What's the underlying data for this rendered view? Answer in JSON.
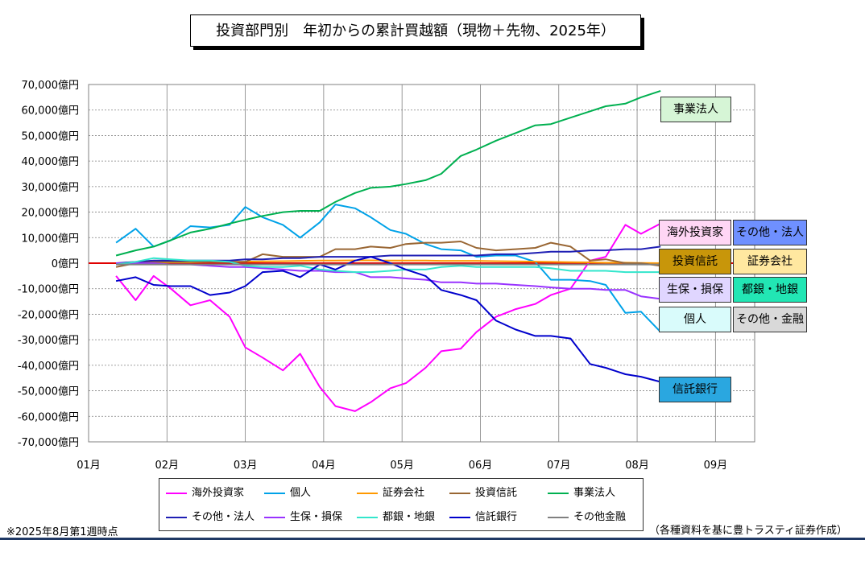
{
  "title": "投資部門別　年初からの累計買越額（現物＋先物、2025年）",
  "note_left": "※2025年8月第1週時点",
  "note_right": "（各種資料を基に豊トラスティ証券作成）",
  "colors": {
    "axis_zero": "#e00000",
    "grid": "#808080",
    "footer": "#1f3864"
  },
  "chart_data": {
    "type": "line",
    "title": "投資部門別　年初からの累計買越額（現物＋先物、2025年）",
    "ylim": [
      -70000,
      70000
    ],
    "y_ticks": [
      70000,
      60000,
      50000,
      40000,
      30000,
      20000,
      10000,
      0,
      -10000,
      -20000,
      -30000,
      -40000,
      -50000,
      -60000,
      -70000
    ],
    "y_tick_labels": [
      "70,000億円",
      "60,000億円",
      "50,000億円",
      "40,000億円",
      "30,000億円",
      "20,000億円",
      "10,000億円",
      "0億円",
      "-10,000億円",
      "-20,000億円",
      "-30,000億円",
      "-40,000億円",
      "-50,000億円",
      "-60,000億円",
      "-70,000億円"
    ],
    "x_tick_labels": [
      "01月",
      "02月",
      "03月",
      "04月",
      "05月",
      "06月",
      "07月",
      "08月",
      "09月"
    ],
    "xlim": [
      1,
      9.5
    ],
    "weeks": [
      1.35,
      1.6,
      1.83,
      2.05,
      2.3,
      2.55,
      2.8,
      3.0,
      3.22,
      3.48,
      3.7,
      3.95,
      4.15,
      4.4,
      4.6,
      4.85,
      5.05,
      5.3,
      5.5,
      5.75,
      5.95,
      6.2,
      6.45,
      6.7,
      6.9,
      7.15,
      7.4,
      7.6,
      7.85,
      8.05,
      8.3
    ],
    "series": [
      {
        "name": "海外投資家",
        "color": "#ff00ff",
        "values": [
          -5000,
          -14500,
          -5000,
          -10000,
          -16500,
          -14500,
          -21000,
          -33000,
          -37000,
          -42000,
          -35500,
          -48500,
          -56000,
          -58000,
          -54500,
          -49000,
          -47000,
          -41000,
          -34500,
          -33500,
          -27000,
          -21000,
          -18000,
          -16000,
          -12500,
          -10000,
          1000,
          2500,
          15000,
          11500,
          15500
        ]
      },
      {
        "name": "個人",
        "color": "#00a2e8",
        "values": [
          8000,
          13500,
          6500,
          9000,
          14500,
          14000,
          15000,
          22000,
          18000,
          15000,
          10000,
          16000,
          23000,
          21500,
          18000,
          13000,
          11500,
          7500,
          5500,
          5000,
          2500,
          3000,
          3000,
          500,
          -6500,
          -6500,
          -7000,
          -8500,
          -19500,
          -19000,
          -27000
        ]
      },
      {
        "name": "証券会社",
        "color": "#ff9900",
        "values": [
          0,
          0,
          200,
          300,
          300,
          500,
          500,
          600,
          700,
          800,
          900,
          1000,
          1000,
          1100,
          1100,
          1000,
          1000,
          1000,
          900,
          900,
          900,
          800,
          700,
          600,
          500,
          400,
          300,
          200,
          200,
          100,
          0
        ]
      },
      {
        "name": "投資信託",
        "color": "#996633",
        "values": [
          -1500,
          0,
          500,
          500,
          500,
          500,
          500,
          500,
          3500,
          2500,
          2500,
          2500,
          5500,
          5500,
          6500,
          6000,
          7500,
          8000,
          8000,
          8500,
          6000,
          5000,
          5500,
          6000,
          8000,
          6500,
          1000,
          1500,
          0,
          0,
          -1000
        ]
      },
      {
        "name": "事業法人",
        "color": "#00b050",
        "values": [
          3000,
          5000,
          6500,
          9000,
          12000,
          13500,
          15500,
          17000,
          18500,
          20000,
          20500,
          20500,
          24000,
          27500,
          29500,
          30000,
          31000,
          32500,
          35000,
          42000,
          44500,
          48000,
          51000,
          54000,
          54500,
          57000,
          59500,
          61500,
          62500,
          65000,
          67500
        ]
      },
      {
        "name": "その他・法人",
        "color": "#1f1fb4",
        "values": [
          0,
          500,
          1000,
          1000,
          1000,
          1000,
          1000,
          1500,
          1500,
          2000,
          2000,
          2500,
          2500,
          2500,
          2500,
          3000,
          3000,
          3000,
          3000,
          3000,
          3000,
          3500,
          3500,
          4000,
          4500,
          4500,
          5000,
          5000,
          5500,
          5500,
          6500
        ]
      },
      {
        "name": "生保・損保",
        "color": "#9933ff",
        "values": [
          0,
          0,
          0,
          -500,
          -500,
          -1000,
          -1500,
          -1500,
          -2000,
          -2500,
          -3000,
          -3000,
          -3500,
          -3500,
          -5500,
          -5500,
          -6000,
          -6500,
          -7500,
          -7500,
          -8000,
          -8000,
          -8500,
          -9000,
          -9500,
          -10000,
          -10000,
          -10500,
          -10500,
          -13000,
          -14000
        ]
      },
      {
        "name": "都銀・地銀",
        "color": "#33e6cc",
        "values": [
          -500,
          500,
          2000,
          1500,
          1000,
          1000,
          500,
          -1000,
          -1500,
          -1500,
          -1000,
          -2500,
          -3000,
          -3500,
          -3500,
          -3000,
          -2500,
          -2500,
          -1500,
          -1000,
          -1500,
          -1500,
          -1500,
          -1500,
          -2000,
          -3000,
          -3000,
          -3000,
          -3500,
          -3500,
          -3500
        ]
      },
      {
        "name": "信託銀行",
        "color": "#0000cc",
        "values": [
          -7000,
          -5500,
          -8500,
          -9000,
          -9000,
          -12500,
          -11500,
          -9000,
          -3500,
          -3000,
          -5500,
          -500,
          -2500,
          1000,
          2500,
          0,
          -2500,
          -5000,
          -10500,
          -12500,
          -14500,
          -22500,
          -26000,
          -28500,
          -28500,
          -29500,
          -39500,
          -41000,
          -43500,
          -44500,
          -46500
        ]
      },
      {
        "name": "その他金融",
        "color": "#808080",
        "values": [
          -500,
          -500,
          -500,
          -500,
          -500,
          -500,
          -500,
          -500,
          -500,
          -500,
          -500,
          -500,
          -500,
          -500,
          -500,
          -500,
          -500,
          -500,
          -500,
          -500,
          -500,
          -500,
          -500,
          -500,
          -500,
          -500,
          -500,
          -500,
          -500,
          -500,
          -500
        ]
      }
    ],
    "grid": true,
    "legend_position": "bottom"
  },
  "side_labels": [
    {
      "text": "事業法人",
      "bg": "#d6f5d6"
    },
    {
      "text": "海外投資家",
      "bg": "#ffd6f5"
    },
    {
      "text": "その他・法人",
      "bg": "#6f90ff"
    },
    {
      "text": "投資信託",
      "bg": "#c8960a"
    },
    {
      "text": "証券会社",
      "bg": "#ffe8a0"
    },
    {
      "text": "生保・損保",
      "bg": "#e0d6ff"
    },
    {
      "text": "都銀・地銀",
      "bg": "#22e6b4"
    },
    {
      "text": "個人",
      "bg": "#d9fbfb"
    },
    {
      "text": "その他・金融",
      "bg": "#d9d9d9"
    },
    {
      "text": "信託銀行",
      "bg": "#2aa7e0"
    }
  ]
}
